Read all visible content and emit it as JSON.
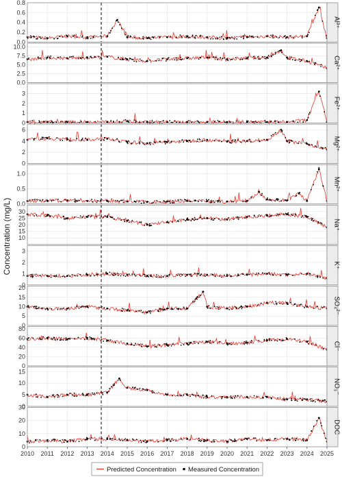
{
  "chart_data": {
    "type": "line",
    "ylabel": "Concentration (mg/L)",
    "xlim": [
      2010,
      2025
    ],
    "x_ticks": [
      "2010",
      "2011",
      "2012",
      "2013",
      "2014",
      "2015",
      "2016",
      "2017",
      "2018",
      "2019",
      "2020",
      "2021",
      "2022",
      "2023",
      "2024",
      "2025"
    ],
    "vline_x": 2013.7,
    "colors": {
      "predicted": "#e8453c",
      "measured": "#000000",
      "strip_bg": "#ececec",
      "panel_border": "#8c8c8c",
      "grid": "#e4e4e4"
    },
    "legend": {
      "placement": "bottom",
      "predicted": "Predicted Concentration",
      "measured": "Measured Concentration"
    },
    "panels": [
      {
        "label": "Al³⁺",
        "ylim": [
          0,
          0.8
        ],
        "yticks": [
          "0.0",
          "0.2",
          "0.4",
          "0.6",
          "0.8"
        ],
        "x": [
          2010.0,
          2011.0,
          2012.0,
          2013.0,
          2014.0,
          2014.5,
          2015.0,
          2016.0,
          2017.0,
          2018.0,
          2019.0,
          2020.0,
          2021.0,
          2022.0,
          2023.0,
          2024.0,
          2024.6,
          2025.0
        ],
        "y": [
          0.1,
          0.08,
          0.12,
          0.1,
          0.12,
          0.45,
          0.1,
          0.08,
          0.1,
          0.12,
          0.1,
          0.08,
          0.1,
          0.12,
          0.1,
          0.12,
          0.7,
          0.08
        ]
      },
      {
        "label": "Ca²⁺",
        "ylim": [
          0,
          11
        ],
        "yticks": [
          "0.0",
          "2.5",
          "5.0",
          "7.5",
          "10.0"
        ],
        "x": [
          2010.0,
          2011.0,
          2012.0,
          2013.0,
          2014.0,
          2015.0,
          2016.0,
          2017.0,
          2018.0,
          2019.0,
          2020.0,
          2021.0,
          2022.0,
          2022.7,
          2023.0,
          2024.0,
          2025.0
        ],
        "y": [
          6.5,
          7.0,
          6.8,
          7.0,
          7.2,
          6.5,
          6.0,
          6.5,
          6.8,
          7.0,
          6.5,
          6.8,
          7.0,
          9.0,
          7.0,
          6.0,
          4.0
        ]
      },
      {
        "label": "Fe²⁺",
        "ylim": [
          0,
          4
        ],
        "yticks": [
          "0",
          "1",
          "2",
          "3"
        ],
        "x": [
          2010.0,
          2011.0,
          2012.0,
          2013.0,
          2014.0,
          2015.0,
          2016.0,
          2017.0,
          2018.0,
          2019.0,
          2020.0,
          2021.0,
          2022.0,
          2023.0,
          2024.0,
          2024.6,
          2025.0
        ],
        "y": [
          0.1,
          0.1,
          0.1,
          0.1,
          0.1,
          0.2,
          0.1,
          0.1,
          0.1,
          0.1,
          0.1,
          0.1,
          0.1,
          0.1,
          0.3,
          3.2,
          0.1
        ]
      },
      {
        "label": "Mg²⁺",
        "ylim": [
          0,
          7
        ],
        "yticks": [
          "0",
          "2",
          "4",
          "6"
        ],
        "x": [
          2010.0,
          2011.0,
          2012.0,
          2013.0,
          2014.0,
          2015.0,
          2016.0,
          2017.0,
          2018.0,
          2019.0,
          2020.0,
          2021.0,
          2022.0,
          2022.7,
          2023.0,
          2024.0,
          2025.0
        ],
        "y": [
          4.2,
          4.5,
          4.3,
          4.2,
          4.4,
          3.8,
          3.6,
          3.8,
          4.0,
          4.2,
          3.9,
          4.0,
          4.2,
          6.0,
          4.0,
          3.5,
          2.5
        ]
      },
      {
        "label": "Mn²⁺",
        "ylim": [
          0,
          1.3
        ],
        "yticks": [
          "0.0",
          "0.5",
          "1.0"
        ],
        "x": [
          2010.0,
          2011.0,
          2012.0,
          2013.0,
          2014.0,
          2015.0,
          2016.0,
          2017.0,
          2018.0,
          2019.0,
          2020.0,
          2021.0,
          2021.6,
          2022.0,
          2023.0,
          2023.6,
          2024.0,
          2024.6,
          2025.0
        ],
        "y": [
          0.1,
          0.1,
          0.12,
          0.1,
          0.1,
          0.08,
          0.07,
          0.08,
          0.1,
          0.1,
          0.08,
          0.1,
          0.4,
          0.15,
          0.12,
          0.35,
          0.1,
          1.15,
          0.1
        ]
      },
      {
        "label": "Na⁺",
        "ylim": [
          5,
          35
        ],
        "yticks": [
          "10",
          "15",
          "20",
          "25",
          "30"
        ],
        "x": [
          2010.0,
          2011.0,
          2012.0,
          2013.0,
          2014.0,
          2015.0,
          2016.0,
          2017.0,
          2018.0,
          2019.0,
          2020.0,
          2021.0,
          2022.0,
          2023.0,
          2024.0,
          2025.0
        ],
        "y": [
          28,
          27,
          25,
          26,
          26,
          23,
          20,
          22,
          24,
          25,
          24,
          26,
          27,
          28,
          26,
          18
        ]
      },
      {
        "label": "K⁺",
        "ylim": [
          0,
          3.5
        ],
        "yticks": [
          "0",
          "1",
          "2",
          "3"
        ],
        "x": [
          2010.0,
          2011.0,
          2012.0,
          2013.0,
          2014.0,
          2015.0,
          2016.0,
          2017.0,
          2018.0,
          2019.0,
          2020.0,
          2021.0,
          2022.0,
          2023.0,
          2024.0,
          2025.0
        ],
        "y": [
          0.8,
          0.8,
          0.8,
          0.9,
          1.0,
          0.9,
          0.8,
          0.8,
          0.9,
          0.9,
          0.8,
          0.9,
          1.0,
          0.9,
          1.0,
          0.6
        ]
      },
      {
        "label": "SO₄²⁻",
        "ylim": [
          0,
          21
        ],
        "yticks": [
          "0",
          "5",
          "10",
          "15",
          "20"
        ],
        "x": [
          2010.0,
          2011.0,
          2012.0,
          2013.0,
          2014.0,
          2015.0,
          2016.0,
          2017.0,
          2018.0,
          2018.8,
          2019.0,
          2020.0,
          2021.0,
          2022.0,
          2023.0,
          2024.0,
          2025.0
        ],
        "y": [
          10,
          9,
          9,
          10,
          9,
          8,
          7,
          9,
          9,
          18,
          10,
          9,
          10,
          12,
          12,
          10,
          9
        ]
      },
      {
        "label": "Cl⁻",
        "ylim": [
          0,
          85
        ],
        "yticks": [
          "0",
          "20",
          "40",
          "60",
          "80"
        ],
        "x": [
          2010.0,
          2011.0,
          2012.0,
          2013.0,
          2014.0,
          2015.0,
          2016.0,
          2017.0,
          2018.0,
          2019.0,
          2020.0,
          2021.0,
          2022.0,
          2023.0,
          2024.0,
          2025.0
        ],
        "y": [
          58,
          60,
          57,
          60,
          55,
          48,
          42,
          45,
          48,
          52,
          48,
          50,
          55,
          58,
          52,
          35
        ]
      },
      {
        "label": "NO₃⁻",
        "ylim": [
          0,
          17
        ],
        "yticks": [
          "0",
          "5",
          "10",
          "15"
        ],
        "x": [
          2010.0,
          2011.0,
          2012.0,
          2013.0,
          2014.0,
          2014.6,
          2015.0,
          2016.0,
          2017.0,
          2018.0,
          2019.0,
          2020.0,
          2021.0,
          2022.0,
          2023.0,
          2024.0,
          2025.0
        ],
        "y": [
          5,
          4,
          5,
          5,
          6,
          12,
          8,
          7,
          5,
          5,
          4,
          4,
          4,
          4,
          3,
          3,
          2
        ]
      },
      {
        "label": "DOC",
        "ylim": [
          0,
          30
        ],
        "yticks": [
          "0",
          "10",
          "20",
          "30"
        ],
        "x": [
          2010.0,
          2011.0,
          2012.0,
          2013.0,
          2014.0,
          2015.0,
          2016.0,
          2017.0,
          2018.0,
          2019.0,
          2020.0,
          2021.0,
          2022.0,
          2023.0,
          2024.0,
          2024.6,
          2025.0
        ],
        "y": [
          4,
          5,
          4,
          6,
          6,
          5,
          4,
          5,
          6,
          5,
          4,
          6,
          5,
          6,
          5,
          22,
          4
        ]
      }
    ]
  }
}
